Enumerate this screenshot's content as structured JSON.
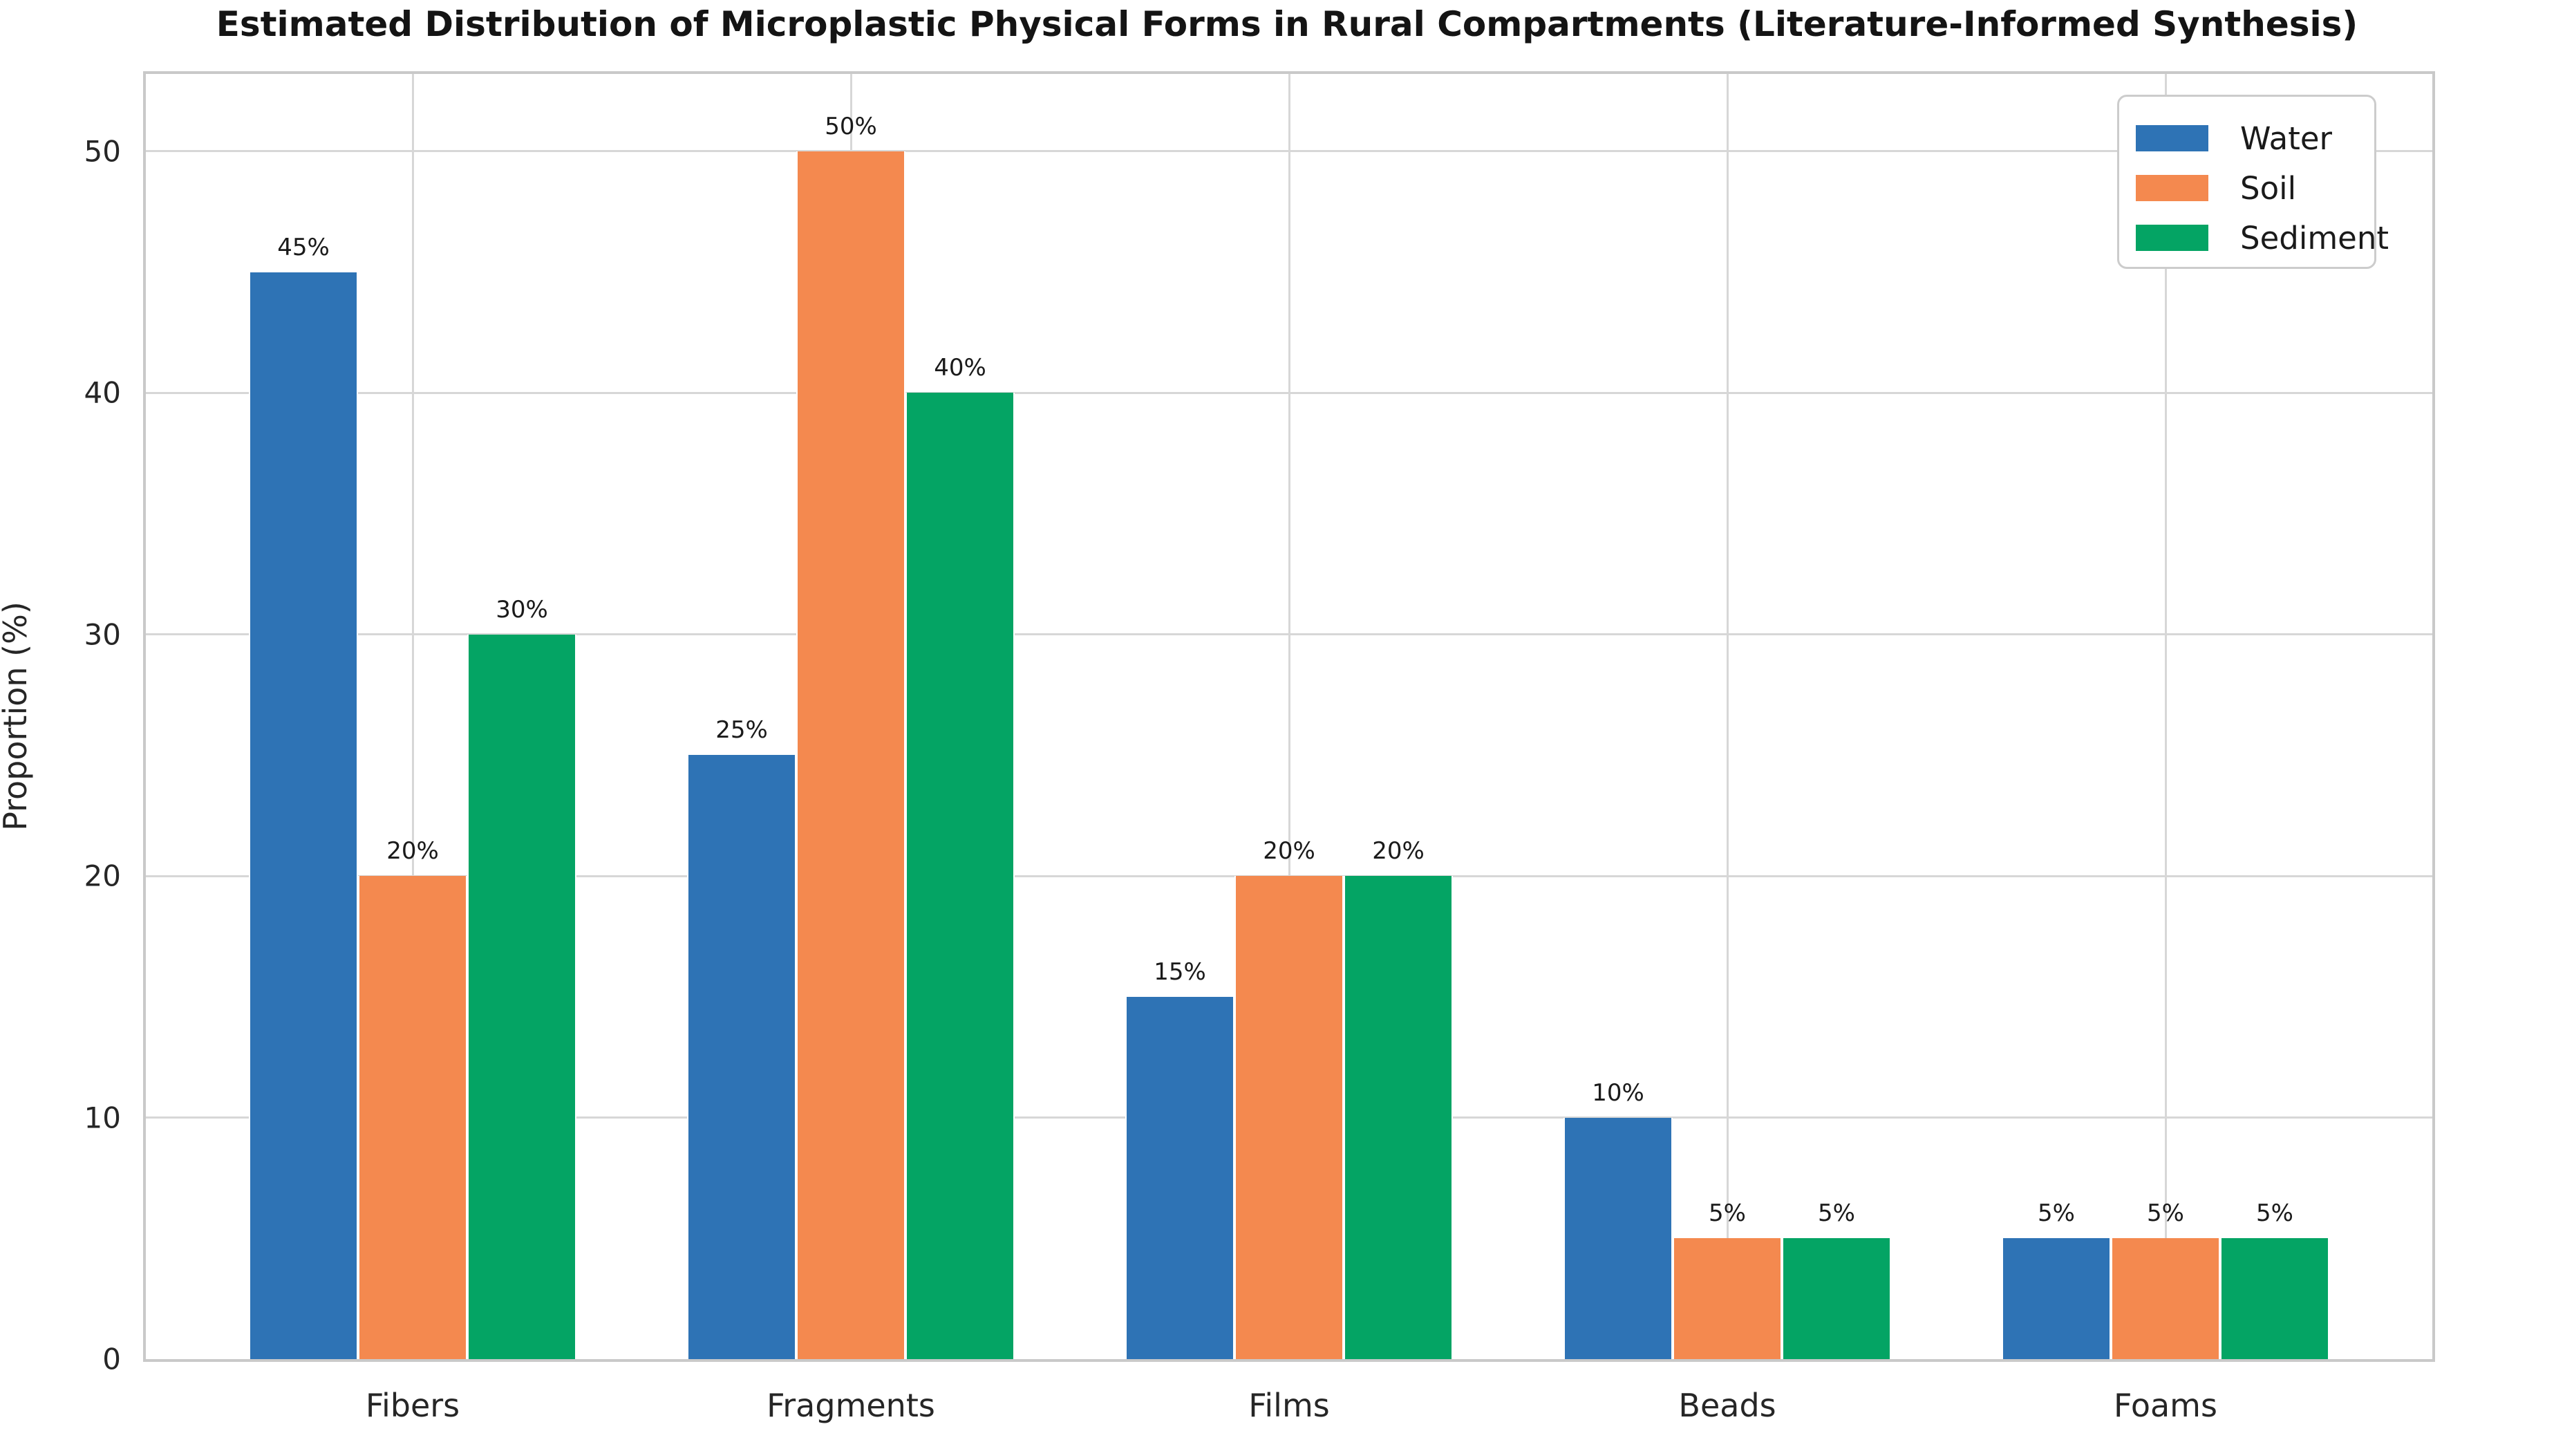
{
  "chart_data": {
    "type": "bar",
    "title": "Estimated Distribution of Microplastic Physical Forms in Rural Compartments (Literature-Informed Synthesis)",
    "xlabel": "",
    "ylabel": "Proportion (%)",
    "categories": [
      "Fibers",
      "Fragments",
      "Films",
      "Beads",
      "Foams"
    ],
    "series": [
      {
        "name": "Water",
        "color": "#2e73b5",
        "values": [
          45,
          25,
          15,
          10,
          5
        ]
      },
      {
        "name": "Soil",
        "color": "#f4894f",
        "values": [
          20,
          50,
          20,
          5,
          5
        ]
      },
      {
        "name": "Sediment",
        "color": "#04a464",
        "values": [
          30,
          40,
          20,
          5,
          5
        ]
      }
    ],
    "value_labels": [
      [
        "45%",
        "25%",
        "15%",
        "10%",
        "5%"
      ],
      [
        "20%",
        "50%",
        "20%",
        "5%",
        "5%"
      ],
      [
        "30%",
        "40%",
        "20%",
        "5%",
        "5%"
      ]
    ],
    "y_ticks": [
      0,
      10,
      20,
      30,
      40,
      50
    ],
    "ylim": [
      0,
      53.2
    ],
    "grid": true,
    "legend_position": "upper right",
    "colors": {
      "grid": "#d7d7d7",
      "plot_border": "#c9c9c9",
      "background": "#ffffff",
      "text": "#262626"
    }
  }
}
